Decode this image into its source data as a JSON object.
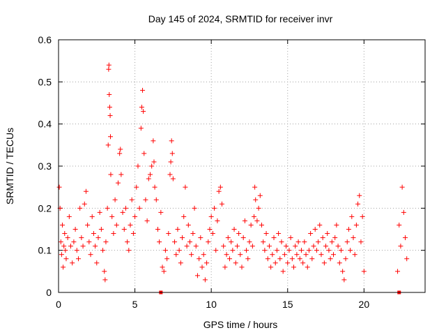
{
  "chart_data": {
    "type": "scatter",
    "title": "Day 145 of 2024, SRMTID for receiver invr",
    "xlabel": "GPS time / hours",
    "ylabel": "SRMTID / TECUs",
    "xlim": [
      0,
      24
    ],
    "ylim": [
      0,
      0.6
    ],
    "xticks": [
      0,
      5,
      10,
      15,
      20
    ],
    "yticks": [
      0,
      0.1,
      0.2,
      0.3,
      0.4,
      0.5,
      0.6
    ],
    "grid": true,
    "marker": "+",
    "color": "#ff0000",
    "series": [
      {
        "name": "SRMTID",
        "points": [
          [
            0.05,
            0.25
          ],
          [
            0.1,
            0.2
          ],
          [
            0.15,
            0.12
          ],
          [
            0.2,
            0.09
          ],
          [
            0.25,
            0.16
          ],
          [
            0.3,
            0.06
          ],
          [
            0.35,
            0.11
          ],
          [
            0.4,
            0.14
          ],
          [
            0.45,
            0.1
          ],
          [
            0.5,
            0.08
          ],
          [
            0.6,
            0.13
          ],
          [
            0.7,
            0.18
          ],
          [
            0.8,
            0.11
          ],
          [
            0.9,
            0.07
          ],
          [
            1.0,
            0.12
          ],
          [
            1.1,
            0.15
          ],
          [
            1.2,
            0.1
          ],
          [
            1.3,
            0.08
          ],
          [
            1.4,
            0.2
          ],
          [
            1.5,
            0.13
          ],
          [
            1.6,
            0.11
          ],
          [
            1.7,
            0.21
          ],
          [
            1.8,
            0.24
          ],
          [
            1.9,
            0.16
          ],
          [
            2.0,
            0.12
          ],
          [
            2.1,
            0.09
          ],
          [
            2.2,
            0.18
          ],
          [
            2.3,
            0.14
          ],
          [
            2.4,
            0.11
          ],
          [
            2.5,
            0.07
          ],
          [
            2.6,
            0.13
          ],
          [
            2.7,
            0.19
          ],
          [
            2.8,
            0.15
          ],
          [
            2.9,
            0.1
          ],
          [
            3.0,
            0.05
          ],
          [
            3.05,
            0.03
          ],
          [
            3.1,
            0.12
          ],
          [
            3.2,
            0.2
          ],
          [
            3.25,
            0.35
          ],
          [
            3.28,
            0.53
          ],
          [
            3.3,
            0.54
          ],
          [
            3.32,
            0.47
          ],
          [
            3.35,
            0.44
          ],
          [
            3.38,
            0.42
          ],
          [
            3.4,
            0.37
          ],
          [
            3.42,
            0.28
          ],
          [
            3.5,
            0.18
          ],
          [
            3.6,
            0.14
          ],
          [
            3.7,
            0.22
          ],
          [
            3.8,
            0.16
          ],
          [
            3.9,
            0.26
          ],
          [
            4.0,
            0.33
          ],
          [
            4.05,
            0.34
          ],
          [
            4.1,
            0.28
          ],
          [
            4.2,
            0.19
          ],
          [
            4.3,
            0.15
          ],
          [
            4.4,
            0.2
          ],
          [
            4.5,
            0.12
          ],
          [
            4.6,
            0.1
          ],
          [
            4.7,
            0.16
          ],
          [
            4.8,
            0.22
          ],
          [
            4.9,
            0.14
          ],
          [
            5.0,
            0.18
          ],
          [
            5.1,
            0.25
          ],
          [
            5.2,
            0.3
          ],
          [
            5.3,
            0.2
          ],
          [
            5.4,
            0.39
          ],
          [
            5.45,
            0.44
          ],
          [
            5.5,
            0.48
          ],
          [
            5.55,
            0.43
          ],
          [
            5.6,
            0.33
          ],
          [
            5.7,
            0.22
          ],
          [
            5.8,
            0.17
          ],
          [
            5.9,
            0.27
          ],
          [
            6.0,
            0.28
          ],
          [
            6.1,
            0.3
          ],
          [
            6.2,
            0.36
          ],
          [
            6.25,
            0.31
          ],
          [
            6.3,
            0.25
          ],
          [
            6.4,
            0.22
          ],
          [
            6.5,
            0.15
          ],
          [
            6.6,
            0.12
          ],
          [
            6.7,
            0.19
          ],
          [
            6.8,
            0.06
          ],
          [
            6.9,
            0.05
          ],
          [
            7.0,
            0.1
          ],
          [
            7.1,
            0.08
          ],
          [
            7.2,
            0.14
          ],
          [
            7.3,
            0.28
          ],
          [
            7.35,
            0.31
          ],
          [
            7.4,
            0.36
          ],
          [
            7.45,
            0.33
          ],
          [
            7.5,
            0.27
          ],
          [
            7.6,
            0.12
          ],
          [
            7.7,
            0.09
          ],
          [
            7.8,
            0.15
          ],
          [
            7.9,
            0.1
          ],
          [
            8.0,
            0.07
          ],
          [
            8.1,
            0.13
          ],
          [
            8.2,
            0.18
          ],
          [
            8.3,
            0.25
          ],
          [
            8.4,
            0.11
          ],
          [
            8.5,
            0.16
          ],
          [
            8.6,
            0.12
          ],
          [
            8.7,
            0.09
          ],
          [
            8.8,
            0.14
          ],
          [
            8.9,
            0.2
          ],
          [
            9.0,
            0.11
          ],
          [
            9.1,
            0.04
          ],
          [
            9.2,
            0.08
          ],
          [
            9.3,
            0.13
          ],
          [
            9.4,
            0.06
          ],
          [
            9.5,
            0.09
          ],
          [
            9.6,
            0.03
          ],
          [
            9.7,
            0.07
          ],
          [
            9.8,
            0.12
          ],
          [
            9.9,
            0.15
          ],
          [
            10.0,
            0.18
          ],
          [
            10.1,
            0.14
          ],
          [
            10.2,
            0.2
          ],
          [
            10.3,
            0.1
          ],
          [
            10.4,
            0.17
          ],
          [
            10.5,
            0.24
          ],
          [
            10.6,
            0.25
          ],
          [
            10.7,
            0.21
          ],
          [
            10.8,
            0.11
          ],
          [
            10.9,
            0.06
          ],
          [
            11.0,
            0.09
          ],
          [
            11.1,
            0.13
          ],
          [
            11.2,
            0.08
          ],
          [
            11.3,
            0.12
          ],
          [
            11.4,
            0.1
          ],
          [
            11.5,
            0.15
          ],
          [
            11.6,
            0.07
          ],
          [
            11.7,
            0.11
          ],
          [
            11.8,
            0.14
          ],
          [
            11.9,
            0.09
          ],
          [
            12.0,
            0.06
          ],
          [
            12.1,
            0.13
          ],
          [
            12.2,
            0.17
          ],
          [
            12.3,
            0.1
          ],
          [
            12.4,
            0.08
          ],
          [
            12.5,
            0.12
          ],
          [
            12.6,
            0.16
          ],
          [
            12.7,
            0.11
          ],
          [
            12.8,
            0.18
          ],
          [
            12.85,
            0.25
          ],
          [
            12.9,
            0.22
          ],
          [
            13.0,
            0.17
          ],
          [
            13.1,
            0.2
          ],
          [
            13.2,
            0.23
          ],
          [
            13.3,
            0.16
          ],
          [
            13.4,
            0.12
          ],
          [
            13.5,
            0.1
          ],
          [
            13.6,
            0.14
          ],
          [
            13.7,
            0.08
          ],
          [
            13.8,
            0.11
          ],
          [
            13.9,
            0.06
          ],
          [
            14.0,
            0.09
          ],
          [
            14.1,
            0.13
          ],
          [
            14.2,
            0.07
          ],
          [
            14.3,
            0.1
          ],
          [
            14.4,
            0.14
          ],
          [
            14.5,
            0.08
          ],
          [
            14.6,
            0.12
          ],
          [
            14.7,
            0.05
          ],
          [
            14.8,
            0.09
          ],
          [
            14.9,
            0.11
          ],
          [
            15.0,
            0.07
          ],
          [
            15.1,
            0.1
          ],
          [
            15.2,
            0.13
          ],
          [
            15.3,
            0.08
          ],
          [
            15.4,
            0.06
          ],
          [
            15.5,
            0.11
          ],
          [
            15.6,
            0.09
          ],
          [
            15.7,
            0.12
          ],
          [
            15.8,
            0.08
          ],
          [
            15.9,
            0.1
          ],
          [
            16.0,
            0.07
          ],
          [
            16.1,
            0.12
          ],
          [
            16.2,
            0.09
          ],
          [
            16.3,
            0.06
          ],
          [
            16.4,
            0.1
          ],
          [
            16.5,
            0.14
          ],
          [
            16.6,
            0.08
          ],
          [
            16.7,
            0.11
          ],
          [
            16.8,
            0.15
          ],
          [
            16.9,
            0.1
          ],
          [
            17.0,
            0.12
          ],
          [
            17.1,
            0.16
          ],
          [
            17.2,
            0.09
          ],
          [
            17.3,
            0.13
          ],
          [
            17.4,
            0.07
          ],
          [
            17.5,
            0.11
          ],
          [
            17.6,
            0.14
          ],
          [
            17.7,
            0.1
          ],
          [
            17.8,
            0.08
          ],
          [
            17.9,
            0.12
          ],
          [
            18.0,
            0.09
          ],
          [
            18.1,
            0.13
          ],
          [
            18.2,
            0.16
          ],
          [
            18.3,
            0.11
          ],
          [
            18.4,
            0.07
          ],
          [
            18.5,
            0.1
          ],
          [
            18.6,
            0.05
          ],
          [
            18.7,
            0.03
          ],
          [
            18.8,
            0.08
          ],
          [
            18.9,
            0.12
          ],
          [
            19.0,
            0.15
          ],
          [
            19.1,
            0.1
          ],
          [
            19.2,
            0.18
          ],
          [
            19.3,
            0.13
          ],
          [
            19.4,
            0.09
          ],
          [
            19.5,
            0.16
          ],
          [
            19.6,
            0.21
          ],
          [
            19.7,
            0.23
          ],
          [
            19.8,
            0.12
          ],
          [
            19.9,
            0.18
          ],
          [
            20.0,
            0.05
          ],
          [
            22.2,
            0.05
          ],
          [
            22.3,
            0.16
          ],
          [
            22.4,
            0.11
          ],
          [
            22.5,
            0.25
          ],
          [
            22.6,
            0.19
          ],
          [
            22.7,
            0.13
          ],
          [
            22.8,
            0.08
          ]
        ]
      }
    ],
    "zero_markers_x": [
      6.7,
      22.3
    ]
  }
}
